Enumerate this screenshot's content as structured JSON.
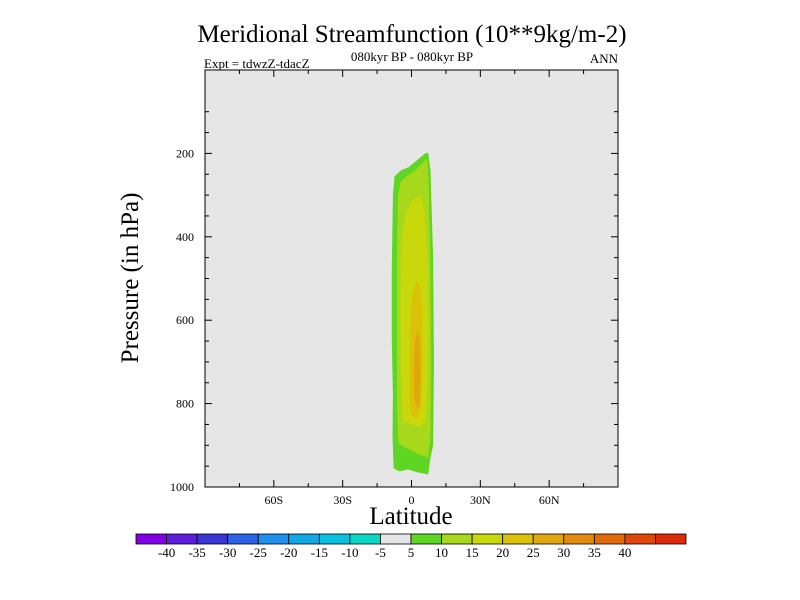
{
  "chart_data": {
    "type": "contour",
    "title": "Meridional Streamfunction (10**9kg/m-2)",
    "subtitle": "080kyr BP - 080kyr BP",
    "expt_label": "Expt = tdwzZ-tdacZ",
    "season_label": "ANN",
    "xlabel": "Latitude",
    "ylabel": "Pressure (in hPa)",
    "xlim": [
      -90,
      90
    ],
    "ylim": [
      1000,
      0
    ],
    "x_ticks": [
      {
        "value": -60,
        "label": "60S"
      },
      {
        "value": -30,
        "label": "30S"
      },
      {
        "value": 0,
        "label": "0"
      },
      {
        "value": 30,
        "label": "30N"
      },
      {
        "value": 60,
        "label": "60N"
      }
    ],
    "y_ticks": [
      {
        "value": 200,
        "label": "200"
      },
      {
        "value": 400,
        "label": "400"
      },
      {
        "value": 600,
        "label": "600"
      },
      {
        "value": 800,
        "label": "800"
      },
      {
        "value": 1000,
        "label": "1000"
      }
    ],
    "background_color": "#e6e6e6",
    "contour_fills": [
      {
        "level": 5,
        "color": "#5fd624",
        "outline": [
          [
            -7.8,
            955
          ],
          [
            -8.3,
            880
          ],
          [
            -8.1,
            780
          ],
          [
            -8.6,
            650
          ],
          [
            -8.6,
            480
          ],
          [
            -8.1,
            300
          ],
          [
            -7.4,
            255
          ],
          [
            -4.4,
            240
          ],
          [
            -1.3,
            233
          ],
          [
            2.1,
            218
          ],
          [
            5.9,
            200
          ],
          [
            7.3,
            198
          ],
          [
            8.3,
            240
          ],
          [
            9.4,
            450
          ],
          [
            9.8,
            700
          ],
          [
            9.4,
            900
          ],
          [
            8.3,
            930
          ],
          [
            7.3,
            970
          ],
          [
            2.6,
            965
          ],
          [
            -1.3,
            958
          ],
          [
            -5.4,
            962
          ]
        ]
      },
      {
        "level": 10,
        "color": "#a8d81c",
        "outline": [
          [
            -5.7,
            895
          ],
          [
            -6.3,
            800
          ],
          [
            -6.3,
            600
          ],
          [
            -6.3,
            420
          ],
          [
            -5.8,
            300
          ],
          [
            -4.8,
            268
          ],
          [
            -2.2,
            255
          ],
          [
            1.5,
            242
          ],
          [
            5.0,
            222
          ],
          [
            6.9,
            212
          ],
          [
            7.4,
            260
          ],
          [
            8.2,
            450
          ],
          [
            8.6,
            700
          ],
          [
            8.3,
            880
          ],
          [
            7.3,
            930
          ],
          [
            2.6,
            920
          ],
          [
            -2.7,
            905
          ]
        ]
      },
      {
        "level": 15,
        "color": "#c9d80a",
        "outline": [
          [
            -3.9,
            840
          ],
          [
            -4.6,
            720
          ],
          [
            -4.8,
            550
          ],
          [
            -4.4,
            410
          ],
          [
            -2.5,
            340
          ],
          [
            0.8,
            310
          ],
          [
            3.9,
            302
          ],
          [
            5.6,
            330
          ],
          [
            7.0,
            450
          ],
          [
            7.4,
            600
          ],
          [
            7.0,
            760
          ],
          [
            6.1,
            845
          ],
          [
            3.9,
            855
          ],
          [
            1.2,
            852
          ],
          [
            -1.5,
            848
          ]
        ]
      },
      {
        "level": 20,
        "color": "#dbc209",
        "outline": [
          [
            -0.6,
            820
          ],
          [
            -0.8,
            700
          ],
          [
            -0.4,
            590
          ],
          [
            0.6,
            530
          ],
          [
            2.1,
            505
          ],
          [
            3.8,
            515
          ],
          [
            4.6,
            580
          ],
          [
            4.9,
            700
          ],
          [
            4.4,
            800
          ],
          [
            3.0,
            835
          ],
          [
            1.2,
            833
          ]
        ]
      },
      {
        "level": 25,
        "color": "#e1a80e",
        "outline": [
          [
            1.2,
            790
          ],
          [
            1.0,
            710
          ],
          [
            1.5,
            650
          ],
          [
            2.7,
            620
          ],
          [
            3.7,
            650
          ],
          [
            3.9,
            740
          ],
          [
            3.6,
            800
          ],
          [
            2.5,
            815
          ]
        ]
      }
    ],
    "colorbar": {
      "colors": [
        "#8100e6",
        "#5e1ddc",
        "#3a36d3",
        "#2b63e4",
        "#1d90ef",
        "#12a8e7",
        "#09c0df",
        "#07d6c4",
        "#e6e6e6",
        "#5fd624",
        "#a8d81c",
        "#c9d80a",
        "#dbc209",
        "#e1a80e",
        "#e48a0f",
        "#e46909",
        "#e04708",
        "#dd2a09"
      ],
      "labels": [
        "-40",
        "-35",
        "-30",
        "-25",
        "-20",
        "-15",
        "-10",
        "-5",
        "5",
        "10",
        "15",
        "20",
        "25",
        "30",
        "35",
        "40"
      ]
    }
  }
}
